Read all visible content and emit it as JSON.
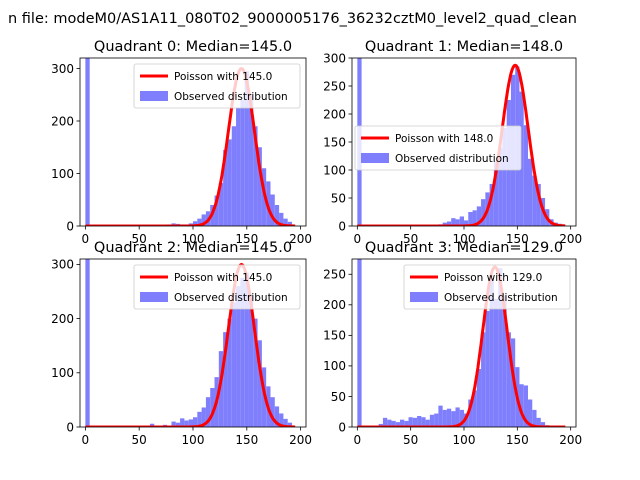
{
  "figure": {
    "suptitle": "n file: modeM0/AS1A11_080T02_9000005176_36232cztM0_level2_quad_clean",
    "colors": {
      "observed": "#7f7ffd",
      "poisson": "#ff0000"
    }
  },
  "chart_data": [
    {
      "type": "bar",
      "title": "Quadrant 0: Median=145.0",
      "xlim": [
        -5,
        205
      ],
      "ylim": [
        0,
        320
      ],
      "xticks": [
        0,
        50,
        100,
        150,
        200
      ],
      "yticks": [
        0,
        100,
        200,
        300
      ],
      "bin_width": 4,
      "legend_loc": "top-right",
      "grid": false,
      "series": [
        {
          "name": "Observed distribution",
          "kind": "histogram",
          "bins": [
            [
              0,
              320
            ],
            [
              76,
              3
            ],
            [
              80,
              5
            ],
            [
              84,
              4
            ],
            [
              88,
              3
            ],
            [
              92,
              3
            ],
            [
              96,
              5
            ],
            [
              100,
              9
            ],
            [
              104,
              14
            ],
            [
              108,
              22
            ],
            [
              112,
              28
            ],
            [
              116,
              40
            ],
            [
              120,
              58
            ],
            [
              124,
              82
            ],
            [
              128,
              145
            ],
            [
              132,
              165
            ],
            [
              136,
              190
            ],
            [
              140,
              225
            ],
            [
              144,
              240
            ],
            [
              148,
              295
            ],
            [
              152,
              250
            ],
            [
              156,
              190
            ],
            [
              160,
              150
            ],
            [
              164,
              110
            ],
            [
              168,
              85
            ],
            [
              172,
              60
            ],
            [
              176,
              40
            ],
            [
              180,
              25
            ],
            [
              184,
              14
            ],
            [
              188,
              8
            ]
          ]
        },
        {
          "name": "Poisson with 145.0",
          "kind": "poisson",
          "mu": 145,
          "peak": 300
        }
      ]
    },
    {
      "type": "bar",
      "title": "Quadrant 1: Median=148.0",
      "xlim": [
        -5,
        205
      ],
      "ylim": [
        0,
        300
      ],
      "xticks": [
        0,
        50,
        100,
        150,
        200
      ],
      "yticks": [
        0,
        50,
        100,
        150,
        200,
        250,
        300
      ],
      "bin_width": 4,
      "legend_loc": "center-left",
      "grid": false,
      "series": [
        {
          "name": "Observed distribution",
          "kind": "histogram",
          "bins": [
            [
              0,
              300
            ],
            [
              76,
              3
            ],
            [
              80,
              6
            ],
            [
              84,
              8
            ],
            [
              88,
              14
            ],
            [
              92,
              12
            ],
            [
              96,
              17
            ],
            [
              100,
              10
            ],
            [
              104,
              25
            ],
            [
              108,
              28
            ],
            [
              112,
              35
            ],
            [
              116,
              48
            ],
            [
              120,
              60
            ],
            [
              124,
              75
            ],
            [
              128,
              115
            ],
            [
              132,
              140
            ],
            [
              136,
              175
            ],
            [
              140,
              225
            ],
            [
              144,
              270
            ],
            [
              148,
              285
            ],
            [
              152,
              240
            ],
            [
              156,
              180
            ],
            [
              160,
              120
            ],
            [
              164,
              90
            ],
            [
              168,
              75
            ],
            [
              172,
              50
            ],
            [
              176,
              30
            ],
            [
              180,
              12
            ],
            [
              184,
              6
            ],
            [
              188,
              4
            ]
          ]
        },
        {
          "name": "Poisson with 148.0",
          "kind": "poisson",
          "mu": 148,
          "peak": 287
        }
      ]
    },
    {
      "type": "bar",
      "title": "Quadrant 2: Median=145.0",
      "xlim": [
        -5,
        205
      ],
      "ylim": [
        0,
        310
      ],
      "xticks": [
        0,
        50,
        100,
        150,
        200
      ],
      "yticks": [
        0,
        100,
        200,
        300
      ],
      "bin_width": 4,
      "legend_loc": "top-right",
      "grid": false,
      "series": [
        {
          "name": "Observed distribution",
          "kind": "histogram",
          "bins": [
            [
              0,
              310
            ],
            [
              60,
              6
            ],
            [
              72,
              4
            ],
            [
              80,
              10
            ],
            [
              84,
              8
            ],
            [
              88,
              16
            ],
            [
              92,
              12
            ],
            [
              96,
              14
            ],
            [
              100,
              18
            ],
            [
              104,
              28
            ],
            [
              108,
              36
            ],
            [
              112,
              55
            ],
            [
              116,
              72
            ],
            [
              120,
              92
            ],
            [
              124,
              140
            ],
            [
              128,
              175
            ],
            [
              132,
              200
            ],
            [
              136,
              230
            ],
            [
              140,
              260
            ],
            [
              144,
              275
            ],
            [
              148,
              285
            ],
            [
              152,
              245
            ],
            [
              156,
              200
            ],
            [
              160,
              160
            ],
            [
              164,
              110
            ],
            [
              168,
              75
            ],
            [
              172,
              55
            ],
            [
              176,
              38
            ],
            [
              180,
              25
            ],
            [
              184,
              15
            ],
            [
              188,
              8
            ]
          ]
        },
        {
          "name": "Poisson with 145.0",
          "kind": "poisson",
          "mu": 145,
          "peak": 300
        }
      ]
    },
    {
      "type": "bar",
      "title": "Quadrant 3: Median=129.0",
      "xlim": [
        -5,
        205
      ],
      "ylim": [
        0,
        275
      ],
      "xticks": [
        0,
        50,
        100,
        150,
        200
      ],
      "yticks": [
        0,
        50,
        100,
        150,
        200,
        250
      ],
      "bin_width": 4,
      "legend_loc": "top-right",
      "grid": false,
      "series": [
        {
          "name": "Observed distribution",
          "kind": "histogram",
          "bins": [
            [
              0,
              275
            ],
            [
              20,
              5
            ],
            [
              24,
              15
            ],
            [
              28,
              12
            ],
            [
              32,
              10
            ],
            [
              36,
              8
            ],
            [
              40,
              12
            ],
            [
              44,
              10
            ],
            [
              48,
              16
            ],
            [
              52,
              15
            ],
            [
              56,
              18
            ],
            [
              60,
              16
            ],
            [
              64,
              12
            ],
            [
              68,
              20
            ],
            [
              72,
              22
            ],
            [
              76,
              35
            ],
            [
              80,
              28
            ],
            [
              84,
              30
            ],
            [
              88,
              26
            ],
            [
              92,
              32
            ],
            [
              96,
              28
            ],
            [
              100,
              22
            ],
            [
              104,
              45
            ],
            [
              108,
              60
            ],
            [
              112,
              95
            ],
            [
              116,
              155
            ],
            [
              120,
              190
            ],
            [
              124,
              240
            ],
            [
              128,
              210
            ],
            [
              132,
              260
            ],
            [
              136,
              215
            ],
            [
              140,
              155
            ],
            [
              144,
              145
            ],
            [
              148,
              98
            ],
            [
              152,
              70
            ],
            [
              156,
              68
            ],
            [
              160,
              45
            ],
            [
              164,
              28
            ],
            [
              168,
              15
            ],
            [
              172,
              8
            ],
            [
              176,
              3
            ]
          ]
        },
        {
          "name": "Poisson with 129.0",
          "kind": "poisson",
          "mu": 129,
          "peak": 262
        }
      ]
    }
  ]
}
